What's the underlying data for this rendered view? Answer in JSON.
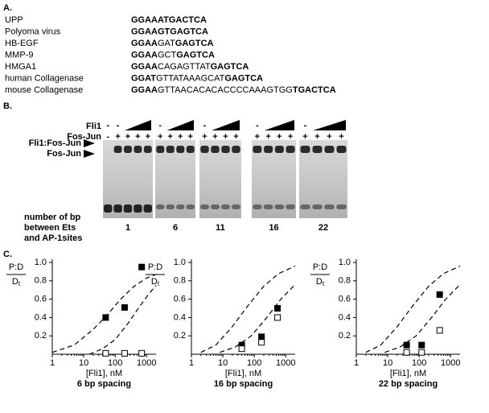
{
  "panel_a": {
    "label": "A.",
    "rows": [
      {
        "name": "UPP",
        "segments": [
          {
            "text": "GGAAATGACTCA",
            "bold": true
          }
        ]
      },
      {
        "name": "Polyoma virus",
        "segments": [
          {
            "text": "GGAAGTGAGTCA",
            "bold": true
          }
        ]
      },
      {
        "name": "HB-EGF",
        "segments": [
          {
            "text": "GGAA",
            "bold": true
          },
          {
            "text": "GAT",
            "bold": false
          },
          {
            "text": "GAGTCA",
            "bold": true
          }
        ]
      },
      {
        "name": "MMP-9",
        "segments": [
          {
            "text": "GGAA",
            "bold": true
          },
          {
            "text": "GCT",
            "bold": false
          },
          {
            "text": "GAGTCA",
            "bold": true
          }
        ]
      },
      {
        "name": "HMGA1",
        "segments": [
          {
            "text": "GGAA",
            "bold": true
          },
          {
            "text": "CAGAGTTAT",
            "bold": false
          },
          {
            "text": "GAGTCA",
            "bold": true
          }
        ]
      },
      {
        "name": "human Collagenase",
        "segments": [
          {
            "text": "GGAT",
            "bold": true
          },
          {
            "text": "GTTATAAAGCAT",
            "bold": false
          },
          {
            "text": "GAGTCA",
            "bold": true
          }
        ]
      },
      {
        "name": "mouse Collagenase",
        "segments": [
          {
            "text": "GGAA",
            "bold": true
          },
          {
            "text": "GTTAACACACACCCCAAAGTGG",
            "bold": false
          },
          {
            "text": "TGACTCA",
            "bold": true
          }
        ]
      }
    ]
  },
  "panel_b": {
    "label": "B.",
    "row_labels": [
      "Fli1",
      "Fos-Jun"
    ],
    "band_labels": [
      "Fli1:Fos-Jun",
      "Fos-Jun"
    ],
    "caption_lines": [
      "number of bp",
      "between Ets",
      "and AP-1sites"
    ],
    "groups": [
      {
        "label": "1",
        "fli1": [
          "-",
          "-"
        ],
        "fos_jun": [
          "-",
          "+",
          "+",
          "+",
          "+"
        ]
      },
      {
        "label": "6",
        "fli1": [
          "-"
        ],
        "fos_jun": [
          "+",
          "+",
          "+",
          "+"
        ]
      },
      {
        "label": "11",
        "fli1": [
          "-"
        ],
        "fos_jun": [
          "+",
          "+",
          "+",
          "+"
        ]
      },
      {
        "label": "16",
        "fli1": [
          "-"
        ],
        "fos_jun": [
          "+",
          "+",
          "+",
          "+"
        ]
      },
      {
        "label": "22",
        "fli1": [
          "-"
        ],
        "fos_jun": [
          "+",
          "+",
          "+",
          "+"
        ]
      }
    ]
  },
  "panel_c": {
    "label": "C."
  },
  "chart_data": [
    {
      "type": "scatter",
      "title": "6 bp spacing",
      "xlabel": "[Fli1], nM",
      "ylabel": "P:D",
      "ylabel_denominator": "D",
      "ylabel_denominator_sub": "t",
      "log_x": true,
      "xlim": [
        1,
        2000
      ],
      "xticks": [
        1,
        10,
        100,
        1000
      ],
      "ylim": [
        0,
        1
      ],
      "yticks": [
        0.2,
        0.4,
        0.6,
        0.8,
        {
          "value": 1,
          "label": "1.0"
        }
      ],
      "series": [
        {
          "marker": "filled-square",
          "color": "#000000",
          "x": [
            50,
            200,
            700
          ],
          "values": [
            0.4,
            0.51,
            0.95
          ]
        },
        {
          "marker": "open-square",
          "color": "#000000",
          "x": [
            50,
            200,
            700
          ],
          "values": [
            0.01,
            0.01,
            0.01
          ]
        },
        {
          "line": "dashed",
          "color": "#000000",
          "x": [
            1,
            5,
            20,
            50,
            150,
            400,
            1000,
            2000
          ],
          "values": [
            0.02,
            0.1,
            0.27,
            0.41,
            0.6,
            0.74,
            0.83,
            0.87
          ]
        },
        {
          "line": "dashed",
          "color": "#000000",
          "x": [
            15,
            40,
            100,
            250,
            600,
            1200,
            2000
          ],
          "values": [
            0.0,
            0.06,
            0.16,
            0.33,
            0.52,
            0.66,
            0.75
          ]
        }
      ]
    },
    {
      "type": "scatter",
      "title": "16 bp spacing",
      "xlabel": "[Fli1], nM",
      "ylabel": "P:D",
      "ylabel_denominator": "D",
      "ylabel_denominator_sub": "t",
      "log_x": true,
      "xlim": [
        1,
        2000
      ],
      "xticks": [
        1,
        10,
        100,
        1000
      ],
      "ylim": [
        0,
        1
      ],
      "yticks": [
        0.2,
        0.4,
        0.6,
        0.8,
        {
          "value": 1,
          "label": "1.0"
        }
      ],
      "series": [
        {
          "marker": "filled-square",
          "color": "#000000",
          "x": [
            40,
            170,
            550
          ],
          "values": [
            0.1,
            0.19,
            0.5
          ]
        },
        {
          "marker": "open-square",
          "color": "#000000",
          "x": [
            40,
            170,
            550
          ],
          "values": [
            0.06,
            0.13,
            0.4
          ]
        },
        {
          "line": "dashed",
          "color": "#000000",
          "x": [
            2,
            6,
            20,
            60,
            200,
            600,
            2000
          ],
          "values": [
            0.02,
            0.1,
            0.3,
            0.52,
            0.74,
            0.88,
            0.96
          ]
        },
        {
          "line": "dashed",
          "color": "#000000",
          "x": [
            8,
            25,
            80,
            250,
            700,
            2000
          ],
          "values": [
            0.02,
            0.08,
            0.2,
            0.4,
            0.6,
            0.76
          ]
        }
      ]
    },
    {
      "type": "scatter",
      "title": "22 bp spacing",
      "xlabel": "[Fli1], nM",
      "ylabel": "P:D",
      "ylabel_denominator": "D",
      "ylabel_denominator_sub": "t",
      "log_x": true,
      "xlim": [
        1,
        2000
      ],
      "xticks": [
        1,
        10,
        100,
        1000
      ],
      "ylim": [
        0,
        1
      ],
      "yticks": [
        0.2,
        0.4,
        0.6,
        0.8,
        {
          "value": 1,
          "label": "1.0"
        }
      ],
      "series": [
        {
          "marker": "filled-square",
          "color": "#000000",
          "x": [
            40,
            120,
            450
          ],
          "values": [
            0.1,
            0.1,
            0.65
          ]
        },
        {
          "marker": "open-square",
          "color": "#000000",
          "x": [
            40,
            120,
            450
          ],
          "values": [
            0.02,
            0.02,
            0.26
          ]
        },
        {
          "line": "dashed",
          "color": "#000000",
          "x": [
            2,
            6,
            20,
            60,
            200,
            600,
            2000
          ],
          "values": [
            0.02,
            0.1,
            0.3,
            0.52,
            0.74,
            0.88,
            0.96
          ]
        },
        {
          "line": "dashed",
          "color": "#000000",
          "x": [
            8,
            25,
            80,
            250,
            700,
            2000
          ],
          "values": [
            0.02,
            0.08,
            0.2,
            0.4,
            0.6,
            0.76
          ]
        }
      ]
    }
  ]
}
